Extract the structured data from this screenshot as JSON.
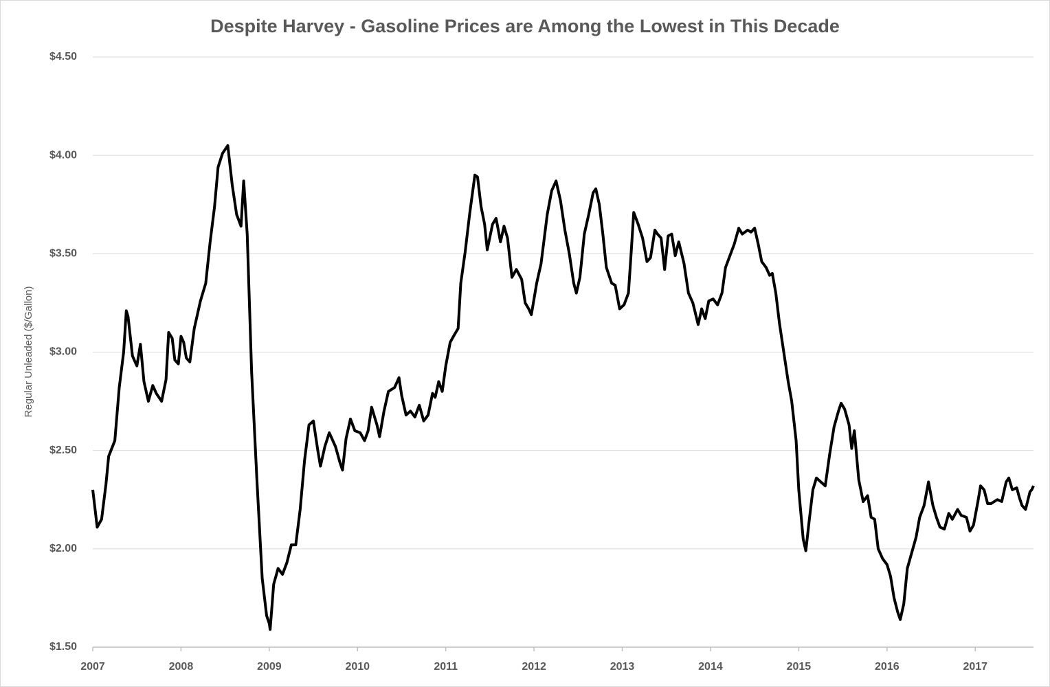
{
  "chart_data": {
    "type": "line",
    "title": "Despite Harvey - Gasoline Prices are Among the Lowest in This Decade",
    "y_label": "Regular Unleaded ($/Gallon)",
    "color": "#000000",
    "grid": true,
    "xlim": [
      2007,
      2017.66
    ],
    "xticks": [
      2007,
      2008,
      2009,
      2010,
      2011,
      2012,
      2013,
      2014,
      2015,
      2016,
      2017
    ],
    "ylim": [
      1.5,
      4.5
    ],
    "yticks": [
      {
        "value": 1.5,
        "label": "$1.50"
      },
      {
        "value": 2,
        "label": "$2.00"
      },
      {
        "value": 2.5,
        "label": "$2.50"
      },
      {
        "value": 3,
        "label": "$3.00"
      },
      {
        "value": 3.5,
        "label": "$3.50"
      },
      {
        "value": 4,
        "label": "$4.00"
      },
      {
        "value": 4.5,
        "label": "$4.50"
      }
    ],
    "x": [
      2007.0,
      2007.05,
      2007.1,
      2007.15,
      2007.18,
      2007.25,
      2007.3,
      2007.35,
      2007.38,
      2007.4,
      2007.45,
      2007.5,
      2007.54,
      2007.58,
      2007.63,
      2007.68,
      2007.72,
      2007.78,
      2007.83,
      2007.86,
      2007.9,
      2007.93,
      2007.97,
      2008.0,
      2008.03,
      2008.06,
      2008.1,
      2008.15,
      2008.22,
      2008.28,
      2008.33,
      2008.38,
      2008.42,
      2008.47,
      2008.53,
      2008.58,
      2008.63,
      2008.68,
      2008.71,
      2008.75,
      2008.8,
      2008.86,
      2008.92,
      2008.97,
      2009.0,
      2009.01,
      2009.05,
      2009.1,
      2009.15,
      2009.2,
      2009.25,
      2009.3,
      2009.35,
      2009.4,
      2009.45,
      2009.5,
      2009.55,
      2009.58,
      2009.63,
      2009.68,
      2009.75,
      2009.8,
      2009.83,
      2009.87,
      2009.92,
      2009.97,
      2010.03,
      2010.08,
      2010.12,
      2010.16,
      2010.22,
      2010.25,
      2010.3,
      2010.35,
      2010.42,
      2010.47,
      2010.5,
      2010.55,
      2010.6,
      2010.65,
      2010.7,
      2010.75,
      2010.8,
      2010.85,
      2010.88,
      2010.92,
      2010.96,
      2011.0,
      2011.05,
      2011.1,
      2011.14,
      2011.17,
      2011.22,
      2011.27,
      2011.3,
      2011.33,
      2011.36,
      2011.4,
      2011.44,
      2011.47,
      2011.53,
      2011.57,
      2011.62,
      2011.66,
      2011.7,
      2011.75,
      2011.8,
      2011.86,
      2011.9,
      2011.94,
      2011.97,
      2012.03,
      2012.08,
      2012.15,
      2012.2,
      2012.25,
      2012.3,
      2012.35,
      2012.4,
      2012.45,
      2012.48,
      2012.52,
      2012.57,
      2012.62,
      2012.67,
      2012.7,
      2012.74,
      2012.78,
      2012.82,
      2012.88,
      2012.92,
      2012.97,
      2013.02,
      2013.07,
      2013.1,
      2013.13,
      2013.18,
      2013.23,
      2013.28,
      2013.32,
      2013.37,
      2013.4,
      2013.44,
      2013.48,
      2013.52,
      2013.56,
      2013.6,
      2013.64,
      2013.7,
      2013.75,
      2013.8,
      2013.86,
      2013.9,
      2013.94,
      2013.98,
      2014.03,
      2014.08,
      2014.13,
      2014.17,
      2014.22,
      2014.27,
      2014.32,
      2014.36,
      2014.42,
      2014.46,
      2014.5,
      2014.54,
      2014.58,
      2014.63,
      2014.67,
      2014.7,
      2014.74,
      2014.78,
      2014.83,
      2014.88,
      2014.92,
      2014.97,
      2015.0,
      2015.05,
      2015.08,
      2015.12,
      2015.16,
      2015.2,
      2015.25,
      2015.3,
      2015.35,
      2015.4,
      2015.45,
      2015.48,
      2015.52,
      2015.57,
      2015.6,
      2015.63,
      2015.68,
      2015.73,
      2015.78,
      2015.82,
      2015.86,
      2015.9,
      2015.95,
      2016.0,
      2016.04,
      2016.08,
      2016.12,
      2016.15,
      2016.19,
      2016.23,
      2016.28,
      2016.33,
      2016.37,
      2016.42,
      2016.47,
      2016.52,
      2016.56,
      2016.6,
      2016.65,
      2016.7,
      2016.74,
      2016.8,
      2016.84,
      2016.9,
      2016.94,
      2016.98,
      2017.03,
      2017.06,
      2017.1,
      2017.14,
      2017.18,
      2017.25,
      2017.3,
      2017.35,
      2017.38,
      2017.42,
      2017.47,
      2017.5,
      2017.53,
      2017.57,
      2017.62,
      2017.64,
      2017.66
    ],
    "values": [
      2.3,
      2.11,
      2.15,
      2.33,
      2.47,
      2.55,
      2.82,
      3.0,
      3.21,
      3.18,
      2.98,
      2.93,
      3.04,
      2.85,
      2.75,
      2.83,
      2.79,
      2.75,
      2.86,
      3.1,
      3.07,
      2.96,
      2.94,
      3.08,
      3.05,
      2.97,
      2.95,
      3.12,
      3.26,
      3.35,
      3.56,
      3.74,
      3.94,
      4.01,
      4.05,
      3.85,
      3.7,
      3.64,
      3.87,
      3.6,
      2.9,
      2.35,
      1.85,
      1.66,
      1.62,
      1.59,
      1.82,
      1.9,
      1.87,
      1.93,
      2.02,
      2.02,
      2.2,
      2.45,
      2.63,
      2.65,
      2.5,
      2.42,
      2.52,
      2.59,
      2.52,
      2.44,
      2.4,
      2.56,
      2.66,
      2.6,
      2.59,
      2.55,
      2.6,
      2.72,
      2.63,
      2.57,
      2.7,
      2.8,
      2.82,
      2.87,
      2.78,
      2.68,
      2.7,
      2.67,
      2.73,
      2.65,
      2.68,
      2.79,
      2.77,
      2.85,
      2.8,
      2.93,
      3.05,
      3.09,
      3.12,
      3.35,
      3.51,
      3.7,
      3.8,
      3.9,
      3.89,
      3.74,
      3.65,
      3.52,
      3.65,
      3.68,
      3.56,
      3.64,
      3.58,
      3.38,
      3.42,
      3.37,
      3.25,
      3.22,
      3.19,
      3.35,
      3.45,
      3.7,
      3.82,
      3.87,
      3.77,
      3.62,
      3.5,
      3.35,
      3.3,
      3.38,
      3.6,
      3.7,
      3.81,
      3.83,
      3.75,
      3.6,
      3.43,
      3.35,
      3.34,
      3.22,
      3.24,
      3.3,
      3.5,
      3.71,
      3.65,
      3.58,
      3.46,
      3.48,
      3.62,
      3.6,
      3.58,
      3.42,
      3.59,
      3.6,
      3.49,
      3.56,
      3.45,
      3.3,
      3.25,
      3.14,
      3.22,
      3.17,
      3.26,
      3.27,
      3.24,
      3.3,
      3.43,
      3.49,
      3.55,
      3.63,
      3.6,
      3.62,
      3.61,
      3.63,
      3.55,
      3.46,
      3.43,
      3.39,
      3.4,
      3.3,
      3.15,
      3.0,
      2.85,
      2.75,
      2.55,
      2.3,
      2.05,
      1.99,
      2.15,
      2.3,
      2.36,
      2.34,
      2.32,
      2.48,
      2.62,
      2.7,
      2.74,
      2.71,
      2.63,
      2.51,
      2.6,
      2.35,
      2.24,
      2.27,
      2.16,
      2.15,
      2.0,
      1.95,
      1.92,
      1.86,
      1.75,
      1.68,
      1.64,
      1.72,
      1.9,
      1.98,
      2.06,
      2.16,
      2.22,
      2.34,
      2.22,
      2.16,
      2.11,
      2.1,
      2.18,
      2.15,
      2.2,
      2.17,
      2.16,
      2.09,
      2.12,
      2.24,
      2.32,
      2.3,
      2.23,
      2.23,
      2.25,
      2.24,
      2.34,
      2.36,
      2.3,
      2.31,
      2.26,
      2.22,
      2.2,
      2.29,
      2.3,
      2.32
    ]
  }
}
